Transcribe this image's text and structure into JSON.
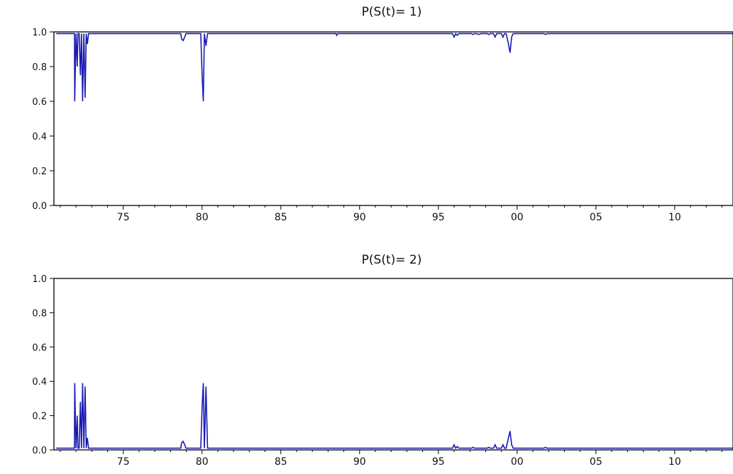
{
  "style": {
    "line_color": "#1a1ab4",
    "axis_color": "#000000",
    "background": "#ffffff"
  },
  "chart_data": [
    {
      "type": "line",
      "title": "P(S(t)= 1)",
      "xlabel": "",
      "ylabel": "",
      "xlim": [
        1970.6,
        2013.7
      ],
      "ylim": [
        0.0,
        1.0
      ],
      "yticks": [
        "0.0",
        "0.2",
        "0.4",
        "0.6",
        "0.8",
        "1.0"
      ],
      "xtick_values": [
        1975,
        1980,
        1985,
        1990,
        1995,
        2000,
        2005,
        2010
      ],
      "xticks": [
        "75",
        "80",
        "85",
        "90",
        "95",
        "00",
        "05",
        "10"
      ],
      "grid": false,
      "series": [
        {
          "x": [
            1970.75,
            1971.9,
            1971.92,
            1972.0,
            1972.08,
            1972.12,
            1972.2,
            1972.28,
            1972.35,
            1972.42,
            1972.5,
            1972.58,
            1972.65,
            1972.72,
            1972.8,
            1978.65,
            1978.7,
            1978.8,
            1978.9,
            1978.98,
            1979.85,
            1979.92,
            1980.0,
            1980.08,
            1980.15,
            1980.25,
            1980.35,
            1980.45,
            1988.5,
            1988.55,
            1988.6,
            1995.9,
            1996.0,
            1996.1,
            1996.2,
            1996.3,
            1997.1,
            1997.2,
            1997.3,
            1997.4,
            1997.6,
            1997.7,
            1997.8,
            1998.1,
            1998.2,
            1998.3,
            1998.5,
            1998.6,
            1998.7,
            1999.0,
            1999.1,
            1999.2,
            1999.3,
            1999.45,
            1999.55,
            1999.65,
            1999.75,
            1999.85,
            2001.7,
            2001.8,
            2001.9,
            2013.7
          ],
          "y": [
            0.99,
            0.99,
            0.6,
            0.99,
            0.8,
            0.99,
            0.99,
            0.75,
            0.99,
            0.6,
            0.99,
            0.62,
            0.99,
            0.93,
            0.99,
            0.99,
            0.96,
            0.95,
            0.97,
            0.99,
            0.99,
            0.99,
            0.76,
            0.6,
            0.99,
            0.92,
            0.99,
            0.99,
            0.99,
            0.98,
            0.99,
            0.99,
            0.97,
            0.99,
            0.98,
            0.99,
            0.99,
            0.985,
            0.99,
            0.99,
            0.985,
            0.99,
            0.99,
            0.99,
            0.985,
            0.99,
            0.99,
            0.97,
            0.99,
            0.99,
            0.97,
            0.99,
            0.99,
            0.93,
            0.88,
            0.97,
            0.99,
            0.99,
            0.99,
            0.985,
            0.99,
            0.99
          ]
        }
      ]
    },
    {
      "type": "line",
      "title": "P(S(t)= 2)",
      "xlabel": "",
      "ylabel": "",
      "xlim": [
        1970.6,
        2013.7
      ],
      "ylim": [
        0.0,
        1.0
      ],
      "yticks": [
        "0.0",
        "0.2",
        "0.4",
        "0.6",
        "0.8",
        "1.0"
      ],
      "xtick_values": [
        1975,
        1980,
        1985,
        1990,
        1995,
        2000,
        2005,
        2010
      ],
      "xticks": [
        "75",
        "80",
        "85",
        "90",
        "95",
        "00",
        "05",
        "10"
      ],
      "grid": false,
      "series": [
        {
          "x": [
            1970.75,
            1971.9,
            1971.92,
            1972.0,
            1972.08,
            1972.12,
            1972.2,
            1972.28,
            1972.35,
            1972.42,
            1972.5,
            1972.58,
            1972.65,
            1972.72,
            1972.8,
            1978.65,
            1978.7,
            1978.8,
            1978.9,
            1978.98,
            1979.85,
            1979.92,
            1980.0,
            1980.08,
            1980.15,
            1980.25,
            1980.35,
            1980.45,
            1995.9,
            1996.0,
            1996.1,
            1996.2,
            1996.3,
            1997.1,
            1997.2,
            1997.3,
            1998.1,
            1998.2,
            1998.3,
            1998.5,
            1998.6,
            1998.7,
            1999.0,
            1999.1,
            1999.2,
            1999.3,
            1999.45,
            1999.55,
            1999.65,
            1999.75,
            1999.85,
            2001.7,
            2001.8,
            2001.9,
            2013.7
          ],
          "y": [
            0.01,
            0.01,
            0.39,
            0.01,
            0.2,
            0.01,
            0.01,
            0.28,
            0.01,
            0.39,
            0.01,
            0.37,
            0.01,
            0.07,
            0.01,
            0.01,
            0.04,
            0.05,
            0.03,
            0.01,
            0.01,
            0.01,
            0.24,
            0.39,
            0.01,
            0.37,
            0.01,
            0.01,
            0.01,
            0.03,
            0.01,
            0.02,
            0.01,
            0.01,
            0.015,
            0.01,
            0.01,
            0.015,
            0.01,
            0.01,
            0.03,
            0.01,
            0.01,
            0.03,
            0.01,
            0.01,
            0.07,
            0.11,
            0.03,
            0.01,
            0.01,
            0.01,
            0.015,
            0.01,
            0.01
          ]
        }
      ]
    }
  ]
}
